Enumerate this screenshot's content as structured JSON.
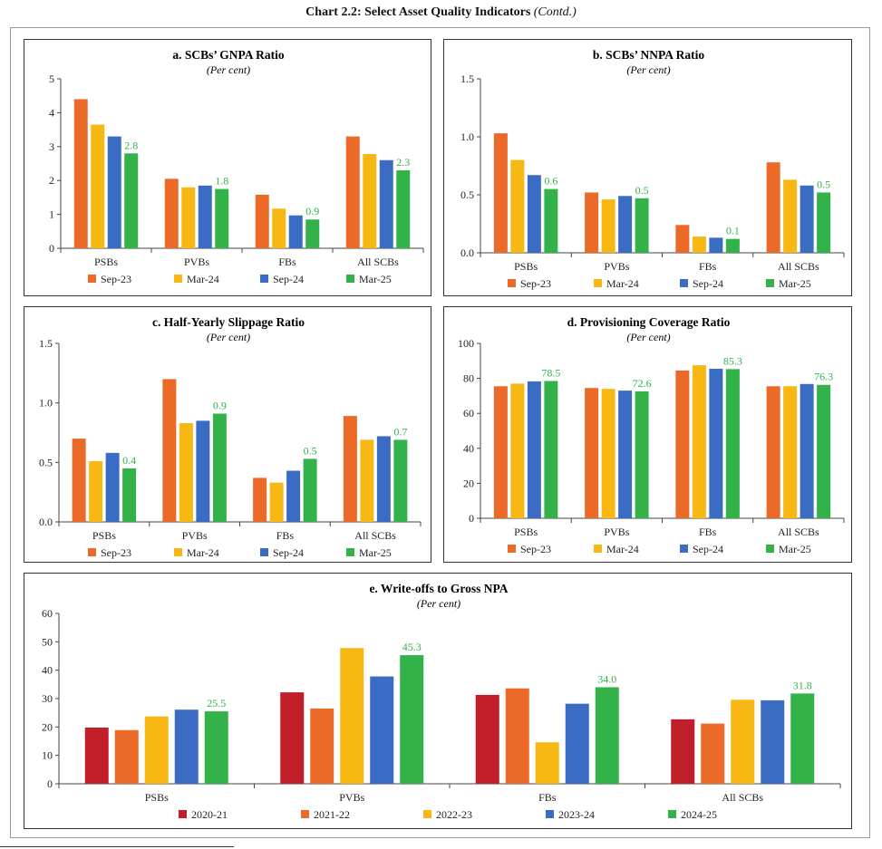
{
  "page_title": "Chart 2.2: Select Asset Quality Indicators",
  "page_title_suffix": "(Contd.)",
  "colors": {
    "Sep-23": "#ec6a28",
    "Mar-24": "#f8b814",
    "Sep-24": "#3a6cc4",
    "Mar-25": "#33b24a",
    "2020-21": "#c01e29",
    "2021-22": "#ec6a28",
    "2022-23": "#f8b814",
    "2023-24": "#3a6cc4",
    "2024-25": "#33b24a",
    "label": "#33b24a"
  },
  "chart_data": [
    {
      "id": "a",
      "type": "bar",
      "title": "a. SCBs’ GNPA Ratio",
      "subtitle": "(Per cent)",
      "categories": [
        "PSBs",
        "PVBs",
        "FBs",
        "All SCBs"
      ],
      "ylim": [
        0,
        5
      ],
      "yticks": [
        "0",
        "1",
        "2",
        "3",
        "4",
        "5"
      ],
      "series": [
        {
          "name": "Sep-23",
          "values": [
            4.4,
            2.05,
            1.58,
            3.3
          ]
        },
        {
          "name": "Mar-24",
          "values": [
            3.65,
            1.8,
            1.17,
            2.78
          ]
        },
        {
          "name": "Sep-24",
          "values": [
            3.3,
            1.85,
            0.97,
            2.6
          ]
        },
        {
          "name": "Mar-25",
          "values": [
            2.8,
            1.75,
            0.85,
            2.3
          ]
        }
      ],
      "data_labels": [
        "2.8",
        "1.8",
        "0.9",
        "2.3"
      ],
      "legend_position": "bottom"
    },
    {
      "id": "b",
      "type": "bar",
      "title": "b. SCBs’ NNPA Ratio",
      "subtitle": "(Per cent)",
      "categories": [
        "PSBs",
        "PVBs",
        "FBs",
        "All SCBs"
      ],
      "ylim": [
        0,
        1.5
      ],
      "yticks": [
        "0.0",
        "0.5",
        "1.0",
        "1.5"
      ],
      "series": [
        {
          "name": "Sep-23",
          "values": [
            1.03,
            0.52,
            0.24,
            0.78
          ]
        },
        {
          "name": "Mar-24",
          "values": [
            0.8,
            0.46,
            0.14,
            0.63
          ]
        },
        {
          "name": "Sep-24",
          "values": [
            0.67,
            0.49,
            0.13,
            0.58
          ]
        },
        {
          "name": "Mar-25",
          "values": [
            0.55,
            0.47,
            0.12,
            0.52
          ]
        }
      ],
      "data_labels": [
        "0.6",
        "0.5",
        "0.1",
        "0.5"
      ],
      "legend_position": "bottom"
    },
    {
      "id": "c",
      "type": "bar",
      "title": "c. Half-Yearly Slippage Ratio",
      "subtitle": "(Per cent)",
      "categories": [
        "PSBs",
        "PVBs",
        "FBs",
        "All SCBs"
      ],
      "ylim": [
        0,
        1.5
      ],
      "yticks": [
        "0.0",
        "0.5",
        "1.0",
        "1.5"
      ],
      "series": [
        {
          "name": "Sep-23",
          "values": [
            0.7,
            1.2,
            0.37,
            0.89
          ]
        },
        {
          "name": "Mar-24",
          "values": [
            0.51,
            0.83,
            0.33,
            0.69
          ]
        },
        {
          "name": "Sep-24",
          "values": [
            0.58,
            0.85,
            0.43,
            0.72
          ]
        },
        {
          "name": "Mar-25",
          "values": [
            0.45,
            0.91,
            0.53,
            0.69
          ]
        }
      ],
      "data_labels": [
        "0.4",
        "0.9",
        "0.5",
        "0.7"
      ],
      "legend_position": "bottom"
    },
    {
      "id": "d",
      "type": "bar",
      "title": "d. Provisioning Coverage Ratio",
      "subtitle": "(Per cent)",
      "categories": [
        "PSBs",
        "PVBs",
        "FBs",
        "All SCBs"
      ],
      "ylim": [
        0,
        100
      ],
      "yticks": [
        "0",
        "20",
        "40",
        "60",
        "80",
        "100"
      ],
      "series": [
        {
          "name": "Sep-23",
          "values": [
            75.5,
            74.5,
            84.5,
            75.5
          ]
        },
        {
          "name": "Mar-24",
          "values": [
            77,
            74,
            87.5,
            75.5
          ]
        },
        {
          "name": "Sep-24",
          "values": [
            78.3,
            73,
            85.5,
            76.8
          ]
        },
        {
          "name": "Mar-25",
          "values": [
            78.5,
            72.6,
            85.3,
            76.3
          ]
        }
      ],
      "data_labels": [
        "78.5",
        "72.6",
        "85.3",
        "76.3"
      ],
      "legend_position": "bottom"
    },
    {
      "id": "e",
      "type": "bar",
      "title": "e. Write-offs to Gross NPA",
      "subtitle": "(Per cent)",
      "categories": [
        "PSBs",
        "PVBs",
        "FBs",
        "All SCBs"
      ],
      "ylim": [
        0,
        60
      ],
      "yticks": [
        "0",
        "10",
        "20",
        "30",
        "40",
        "50",
        "60"
      ],
      "series": [
        {
          "name": "2020-21",
          "values": [
            19.8,
            32.2,
            31.3,
            22.7
          ]
        },
        {
          "name": "2021-22",
          "values": [
            18.9,
            26.5,
            33.6,
            21.2
          ]
        },
        {
          "name": "2022-23",
          "values": [
            23.7,
            47.8,
            14.6,
            29.6
          ]
        },
        {
          "name": "2023-24",
          "values": [
            26.1,
            37.8,
            28.2,
            29.4
          ]
        },
        {
          "name": "2024-25",
          "values": [
            25.5,
            45.3,
            34.0,
            31.8
          ]
        }
      ],
      "data_labels": [
        "25.5",
        "45.3",
        "34.0",
        "31.8"
      ],
      "legend_position": "bottom"
    }
  ]
}
